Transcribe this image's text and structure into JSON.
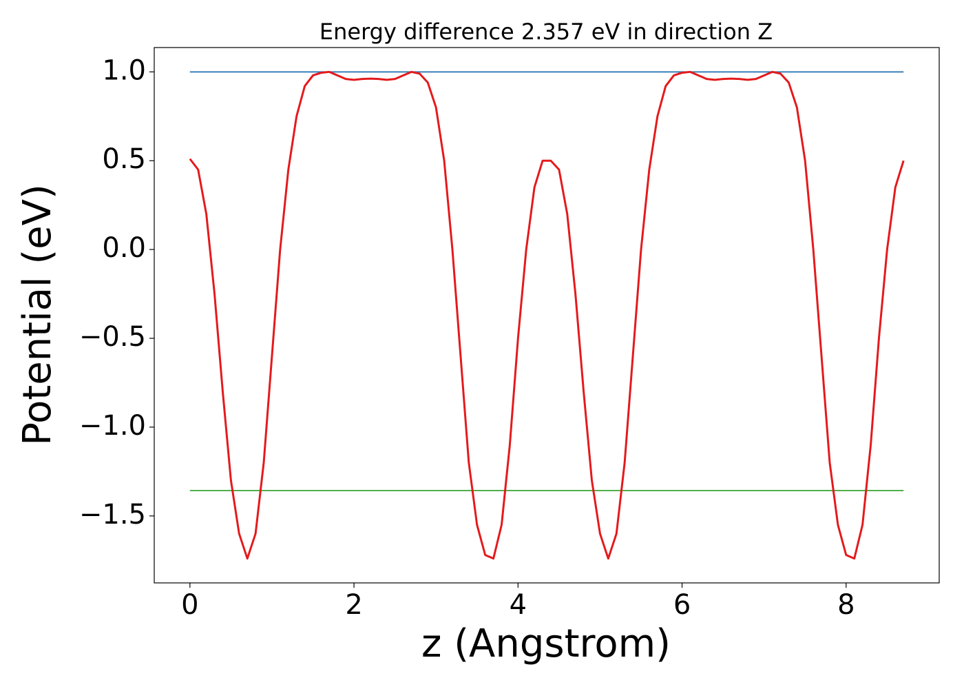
{
  "chart_data": {
    "type": "line",
    "title": "Energy difference 2.357 eV in direction Z",
    "xlabel": "z (Angstrom)",
    "ylabel": "Potential (eV)",
    "x": [
      0,
      0.1,
      0.2,
      0.3,
      0.4,
      0.5,
      0.6,
      0.7,
      0.8,
      0.9,
      1.0,
      1.1,
      1.2,
      1.3,
      1.4,
      1.5,
      1.6,
      1.7,
      1.8,
      1.9,
      2.0,
      2.1,
      2.2,
      2.3,
      2.4,
      2.5,
      2.6,
      2.7,
      2.8,
      2.9,
      3.0,
      3.1,
      3.2,
      3.3,
      3.4,
      3.5,
      3.6,
      3.7,
      3.8,
      3.9,
      4.0,
      4.1,
      4.2,
      4.3,
      4.4,
      4.5,
      4.6,
      4.7,
      4.8,
      4.9,
      5.0,
      5.1,
      5.2,
      5.3,
      5.4,
      5.5,
      5.6,
      5.7,
      5.8,
      5.9,
      6.0,
      6.1,
      6.2,
      6.3,
      6.4,
      6.5,
      6.6,
      6.7,
      6.8,
      6.9,
      7.0,
      7.1,
      7.2,
      7.3,
      7.4,
      7.5,
      7.6,
      7.7,
      7.8,
      7.9,
      8.0,
      8.1,
      8.2,
      8.3,
      8.4,
      8.5,
      8.6,
      8.7
    ],
    "series": [
      {
        "color": "#e41a1c",
        "values": [
          0.51,
          0.45,
          0.2,
          -0.25,
          -0.8,
          -1.3,
          -1.6,
          -1.74,
          -1.6,
          -1.2,
          -0.6,
          0.0,
          0.45,
          0.75,
          0.92,
          0.98,
          0.995,
          1.0,
          0.98,
          0.96,
          0.955,
          0.96,
          0.962,
          0.96,
          0.955,
          0.96,
          0.98,
          1.0,
          0.99,
          0.94,
          0.8,
          0.5,
          0.0,
          -0.6,
          -1.2,
          -1.55,
          -1.72,
          -1.74,
          -1.55,
          -1.1,
          -0.5,
          0.0,
          0.35,
          0.5,
          0.5,
          0.45,
          0.2,
          -0.25,
          -0.8,
          -1.3,
          -1.6,
          -1.74,
          -1.6,
          -1.2,
          -0.6,
          0.0,
          0.45,
          0.75,
          0.92,
          0.98,
          0.995,
          1.0,
          0.98,
          0.96,
          0.955,
          0.96,
          0.962,
          0.96,
          0.955,
          0.96,
          0.98,
          1.0,
          0.99,
          0.94,
          0.8,
          0.5,
          0.0,
          -0.6,
          -1.2,
          -1.55,
          -1.72,
          -1.74,
          -1.55,
          -1.1,
          -0.5,
          0.0,
          0.35,
          0.5
        ]
      }
    ],
    "hlines": [
      {
        "value": 1.0,
        "color": "#377eb8"
      },
      {
        "value": -1.357,
        "color": "#4daf4a"
      }
    ],
    "xlim": [
      -0.435,
      9.135
    ],
    "ylim": [
      -1.877,
      1.137
    ],
    "xticks": [
      0,
      2,
      4,
      6,
      8
    ],
    "yticks": [
      {
        "value": -1.5,
        "label": "−1.5"
      },
      {
        "value": -1,
        "label": "−1.0"
      },
      {
        "value": -0.5,
        "label": "−0.5"
      },
      {
        "value": 0,
        "label": "0.0"
      },
      0.5,
      {
        "value": 1,
        "label": "1.0"
      }
    ]
  }
}
